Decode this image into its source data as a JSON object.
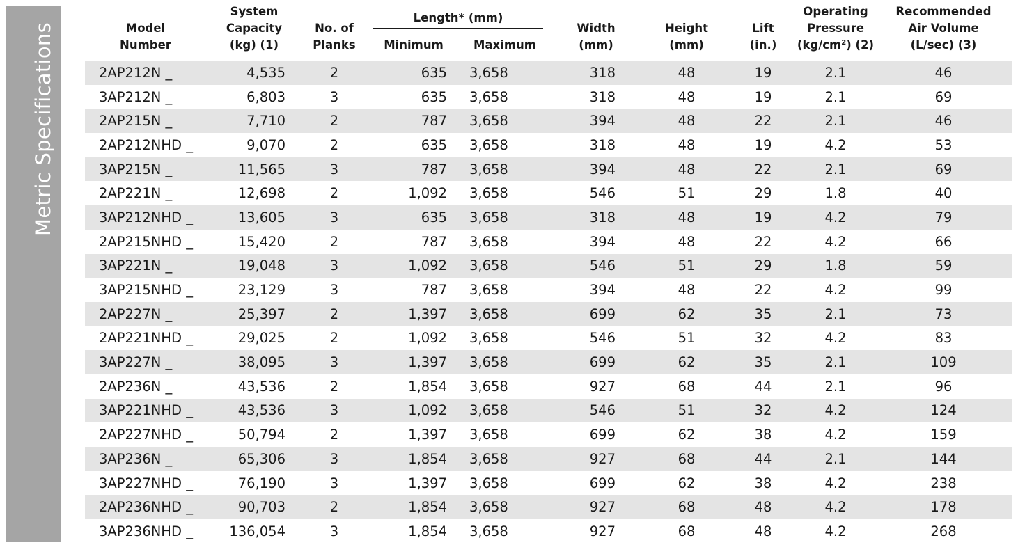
{
  "sidebar": {
    "title": "Metric Specifications"
  },
  "table": {
    "headers": {
      "model": [
        "Model",
        "Number"
      ],
      "capacity": [
        "System",
        "Capacity",
        "(kg) (1)"
      ],
      "planks": [
        "No. of",
        "Planks"
      ],
      "length_group": "Length* (mm)",
      "minimum": "Minimum",
      "maximum": "Maximum",
      "width": [
        "Width",
        "(mm)"
      ],
      "height": [
        "Height",
        "(mm)"
      ],
      "lift": [
        "Lift",
        "(in.)"
      ],
      "pressure": [
        "Operating",
        "Pressure",
        "(kg/cm",
        "2",
        ") (2)"
      ],
      "air_volume": [
        "Recommended",
        "Air Volume",
        "(L/sec) (3)"
      ]
    },
    "rows": [
      {
        "model": "2AP212N _",
        "capacity": "4,535",
        "planks": "2",
        "minimum": "635",
        "maximum": "3,658",
        "width": "318",
        "height": "48",
        "lift": "19",
        "pressure": "2.1",
        "air_volume": "46"
      },
      {
        "model": "3AP212N _",
        "capacity": "6,803",
        "planks": "3",
        "minimum": "635",
        "maximum": "3,658",
        "width": "318",
        "height": "48",
        "lift": "19",
        "pressure": "2.1",
        "air_volume": "69"
      },
      {
        "model": "2AP215N _",
        "capacity": "7,710",
        "planks": "2",
        "minimum": "787",
        "maximum": "3,658",
        "width": "394",
        "height": "48",
        "lift": "22",
        "pressure": "2.1",
        "air_volume": "46"
      },
      {
        "model": "2AP212NHD _",
        "capacity": "9,070",
        "planks": "2",
        "minimum": "635",
        "maximum": "3,658",
        "width": "318",
        "height": "48",
        "lift": "19",
        "pressure": "4.2",
        "air_volume": "53"
      },
      {
        "model": "3AP215N _",
        "capacity": "11,565",
        "planks": "3",
        "minimum": "787",
        "maximum": "3,658",
        "width": "394",
        "height": "48",
        "lift": "22",
        "pressure": "2.1",
        "air_volume": "69"
      },
      {
        "model": "2AP221N _",
        "capacity": "12,698",
        "planks": "2",
        "minimum": "1,092",
        "maximum": "3,658",
        "width": "546",
        "height": "51",
        "lift": "29",
        "pressure": "1.8",
        "air_volume": "40"
      },
      {
        "model": "3AP212NHD _",
        "capacity": "13,605",
        "planks": "3",
        "minimum": "635",
        "maximum": "3,658",
        "width": "318",
        "height": "48",
        "lift": "19",
        "pressure": "4.2",
        "air_volume": "79"
      },
      {
        "model": "2AP215NHD _",
        "capacity": "15,420",
        "planks": "2",
        "minimum": "787",
        "maximum": "3,658",
        "width": "394",
        "height": "48",
        "lift": "22",
        "pressure": "4.2",
        "air_volume": "66"
      },
      {
        "model": "3AP221N _",
        "capacity": "19,048",
        "planks": "3",
        "minimum": "1,092",
        "maximum": "3,658",
        "width": "546",
        "height": "51",
        "lift": "29",
        "pressure": "1.8",
        "air_volume": "59"
      },
      {
        "model": "3AP215NHD _",
        "capacity": "23,129",
        "planks": "3",
        "minimum": "787",
        "maximum": "3,658",
        "width": "394",
        "height": "48",
        "lift": "22",
        "pressure": "4.2",
        "air_volume": "99"
      },
      {
        "model": "2AP227N _",
        "capacity": "25,397",
        "planks": "2",
        "minimum": "1,397",
        "maximum": "3,658",
        "width": "699",
        "height": "62",
        "lift": "35",
        "pressure": "2.1",
        "air_volume": "73"
      },
      {
        "model": "2AP221NHD _",
        "capacity": "29,025",
        "planks": "2",
        "minimum": "1,092",
        "maximum": "3,658",
        "width": "546",
        "height": "51",
        "lift": "32",
        "pressure": "4.2",
        "air_volume": "83"
      },
      {
        "model": "3AP227N _",
        "capacity": "38,095",
        "planks": "3",
        "minimum": "1,397",
        "maximum": "3,658",
        "width": "699",
        "height": "62",
        "lift": "35",
        "pressure": "2.1",
        "air_volume": "109"
      },
      {
        "model": "2AP236N _",
        "capacity": "43,536",
        "planks": "2",
        "minimum": "1,854",
        "maximum": "3,658",
        "width": "927",
        "height": "68",
        "lift": "44",
        "pressure": "2.1",
        "air_volume": "96"
      },
      {
        "model": "3AP221NHD _",
        "capacity": "43,536",
        "planks": "3",
        "minimum": "1,092",
        "maximum": "3,658",
        "width": "546",
        "height": "51",
        "lift": "32",
        "pressure": "4.2",
        "air_volume": "124"
      },
      {
        "model": "2AP227NHD _",
        "capacity": "50,794",
        "planks": "2",
        "minimum": "1,397",
        "maximum": "3,658",
        "width": "699",
        "height": "62",
        "lift": "38",
        "pressure": "4.2",
        "air_volume": "159"
      },
      {
        "model": "3AP236N _",
        "capacity": "65,306",
        "planks": "3",
        "minimum": "1,854",
        "maximum": "3,658",
        "width": "927",
        "height": "68",
        "lift": "44",
        "pressure": "2.1",
        "air_volume": "144"
      },
      {
        "model": "3AP227NHD _",
        "capacity": "76,190",
        "planks": "3",
        "minimum": "1,397",
        "maximum": "3,658",
        "width": "699",
        "height": "62",
        "lift": "38",
        "pressure": "4.2",
        "air_volume": "238"
      },
      {
        "model": "2AP236NHD _",
        "capacity": "90,703",
        "planks": "2",
        "minimum": "1,854",
        "maximum": "3,658",
        "width": "927",
        "height": "68",
        "lift": "48",
        "pressure": "4.2",
        "air_volume": "178"
      },
      {
        "model": "3AP236NHD _",
        "capacity": "136,054",
        "planks": "3",
        "minimum": "1,854",
        "maximum": "3,658",
        "width": "927",
        "height": "68",
        "lift": "48",
        "pressure": "4.2",
        "air_volume": "268"
      }
    ]
  }
}
